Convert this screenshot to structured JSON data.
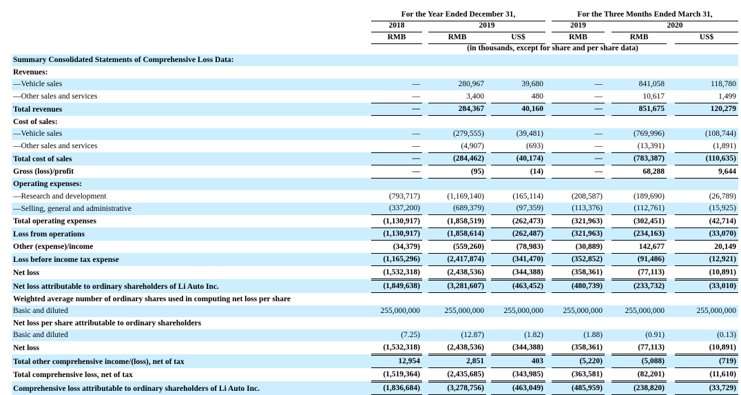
{
  "colors": {
    "row_highlight": "#cceeff"
  },
  "header": {
    "group1": "For the Year Ended December 31,",
    "group2": "For the Three Months Ended March 31,",
    "years": [
      "2018",
      "2019",
      "2019",
      "2020"
    ],
    "units": [
      "RMB",
      "RMB",
      "US$",
      "RMB",
      "RMB",
      "US$"
    ],
    "note": "(in thousands, except for share and per share data)"
  },
  "rows": [
    {
      "label": "Summary Consolidated Statements of Comprehensive Loss Data:",
      "bold": true,
      "values": null,
      "border": "none"
    },
    {
      "label": "Revenues:",
      "bold": true,
      "values": null,
      "border": "none"
    },
    {
      "label": "—Vehicle sales",
      "bold": false,
      "values": [
        "—",
        "280,967",
        "39,680",
        "—",
        "841,058",
        "118,780"
      ],
      "border": "none"
    },
    {
      "label": "—Other sales and services",
      "bold": false,
      "values": [
        "—",
        "3,400",
        "480",
        "—",
        "10,617",
        "1,499"
      ],
      "border": "single"
    },
    {
      "label": "Total revenues",
      "bold": true,
      "values": [
        "—",
        "284,367",
        "40,160",
        "—",
        "851,675",
        "120,279"
      ],
      "border": "single"
    },
    {
      "label": "Cost of sales:",
      "bold": true,
      "values": null,
      "border": "none"
    },
    {
      "label": "—Vehicle sales",
      "bold": false,
      "values": [
        "—",
        "(279,555)",
        "(39,481)",
        "—",
        "(769,996)",
        "(108,744)"
      ],
      "border": "none"
    },
    {
      "label": "—Other sales and services",
      "bold": false,
      "values": [
        "—",
        "(4,907)",
        "(693)",
        "—",
        "(13,391)",
        "(1,891)"
      ],
      "border": "single"
    },
    {
      "label": "Total cost of sales",
      "bold": true,
      "values": [
        "—",
        "(284,462)",
        "(40,174)",
        "—",
        "(783,387)",
        "(110,635)"
      ],
      "border": "single"
    },
    {
      "label": "Gross (loss)/profit",
      "bold": true,
      "values": [
        "—",
        "(95)",
        "(14)",
        "—",
        "68,288",
        "9,644"
      ],
      "border": "single"
    },
    {
      "label": "Operating expenses:",
      "bold": true,
      "values": null,
      "border": "none"
    },
    {
      "label": "—Research and development",
      "bold": false,
      "values": [
        "(793,717)",
        "(1,169,140)",
        "(165,114)",
        "(208,587)",
        "(189,690)",
        "(26,789)"
      ],
      "border": "none"
    },
    {
      "label": "—Selling, general and administrative",
      "bold": false,
      "values": [
        "(337,200)",
        "(689,379)",
        "(97,359)",
        "(113,376)",
        "(112,761)",
        "(15,925)"
      ],
      "border": "single"
    },
    {
      "label": "Total operating expenses",
      "bold": true,
      "values": [
        "(1,130,917)",
        "(1,858,519)",
        "(262,473)",
        "(321,963)",
        "(302,451)",
        "(42,714)"
      ],
      "border": "single"
    },
    {
      "label": "Loss from operations",
      "bold": true,
      "values": [
        "(1,130,917)",
        "(1,858,614)",
        "(262,487)",
        "(321,963)",
        "(234,163)",
        "(33,070)"
      ],
      "border": "single"
    },
    {
      "label": "Other (expense)/income",
      "bold": true,
      "values": [
        "(34,379)",
        "(559,260)",
        "(78,983)",
        "(30,889)",
        "142,677",
        "20,149"
      ],
      "border": "single"
    },
    {
      "label": "Loss before income tax expense",
      "bold": true,
      "values": [
        "(1,165,296)",
        "(2,417,874)",
        "(341,470)",
        "(352,852)",
        "(91,486)",
        "(12,921)"
      ],
      "border": "single"
    },
    {
      "label": "Net loss",
      "bold": true,
      "values": [
        "(1,532,318)",
        "(2,438,536)",
        "(344,388)",
        "(358,361)",
        "(77,113)",
        "(10,891)"
      ],
      "border": "double"
    },
    {
      "label": "Net loss attributable to ordinary shareholders of Li Auto Inc.",
      "bold": true,
      "values": [
        "(1,849,638)",
        "(3,281,607)",
        "(463,452)",
        "(480,739)",
        "(233,732)",
        "(33,010)"
      ],
      "border": "single"
    },
    {
      "label": "Weighted average number of ordinary shares used in computing net loss per share",
      "bold": true,
      "values": null,
      "border": "none"
    },
    {
      "label": "Basic and diluted",
      "bold": false,
      "values": [
        "255,000,000",
        "255,000,000",
        "255,000,000",
        "255,000,000",
        "255,000,000",
        "255,000,000"
      ],
      "border": "none"
    },
    {
      "label": "Net loss per share attributable to ordinary shareholders",
      "bold": true,
      "values": null,
      "border": "none"
    },
    {
      "label": "Basic and diluted",
      "bold": false,
      "values": [
        "(7.25)",
        "(12.87)",
        "(1.82)",
        "(1.88)",
        "(0.91)",
        "(0.13)"
      ],
      "border": "none"
    },
    {
      "label": "Net loss",
      "bold": true,
      "values": [
        "(1,532,318)",
        "(2,438,536)",
        "(344,388)",
        "(358,361)",
        "(77,113)",
        "(10,891)"
      ],
      "border": "double"
    },
    {
      "label": "Total other comprehensive income/(loss), net of tax",
      "bold": true,
      "values": [
        "12,954",
        "2,851",
        "403",
        "(5,220)",
        "(5,088)",
        "(719)"
      ],
      "border": "single"
    },
    {
      "label": "Total comprehensive loss, net of tax",
      "bold": true,
      "values": [
        "(1,519,364)",
        "(2,435,685)",
        "(343,985)",
        "(363,581)",
        "(82,201)",
        "(11,610)"
      ],
      "border": "double"
    },
    {
      "label": "Comprehensive loss attributable to ordinary shareholders of Li Auto Inc.",
      "bold": true,
      "values": [
        "(1,836,684)",
        "(3,278,756)",
        "(463,049)",
        "(485,959)",
        "(238,820)",
        "(33,729)"
      ],
      "border": "single"
    }
  ]
}
